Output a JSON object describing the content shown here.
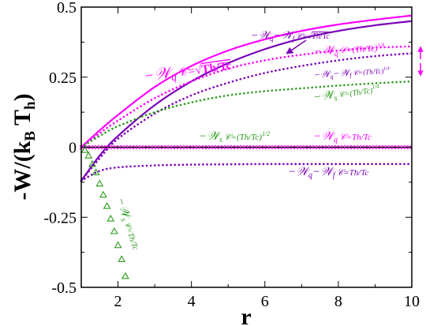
{
  "chart_data": {
    "type": "line",
    "xlabel": "r",
    "ylabel": "-W/(k_B T_h)",
    "xlim": [
      1,
      10
    ],
    "ylim": [
      -0.5,
      0.5
    ],
    "xticks": [
      "2",
      "4",
      "6",
      "8",
      "10"
    ],
    "yticks": [
      "-0.5",
      "-0.25",
      "0",
      "0.25",
      "0.5"
    ],
    "grid": false,
    "legend": "inline annotations",
    "colors": {
      "magenta": "#ff00ff",
      "purple": "#7a00b8",
      "green": "#2a9a1a",
      "black": "#000000"
    },
    "series": [
      {
        "color": "#ff00ff",
        "style": "solid",
        "x": [
          1,
          1.5,
          2,
          3,
          4,
          5,
          6,
          7,
          8,
          9,
          10
        ],
        "y": [
          0.0,
          0.06,
          0.115,
          0.215,
          0.29,
          0.345,
          0.385,
          0.415,
          0.438,
          0.455,
          0.47
        ]
      },
      {
        "color": "#7a00b8",
        "style": "solid",
        "x": [
          1,
          1.5,
          2,
          3,
          4,
          5,
          6,
          7,
          8,
          9,
          10
        ],
        "y": [
          -0.12,
          -0.03,
          0.04,
          0.15,
          0.235,
          0.3,
          0.35,
          0.388,
          0.415,
          0.435,
          0.45
        ]
      },
      {
        "color": "#ff00ff",
        "style": "dotted",
        "x": [
          1,
          1.5,
          2,
          3,
          4,
          5,
          6,
          7,
          8,
          9,
          10
        ],
        "y": [
          0.0,
          0.05,
          0.095,
          0.175,
          0.235,
          0.28,
          0.31,
          0.33,
          0.345,
          0.355,
          0.36
        ]
      },
      {
        "color": "#7a00b8",
        "style": "dotted",
        "x": [
          1,
          1.5,
          2,
          3,
          4,
          5,
          6,
          7,
          8,
          9,
          10
        ],
        "y": [
          -0.12,
          -0.04,
          0.03,
          0.12,
          0.185,
          0.23,
          0.265,
          0.29,
          0.31,
          0.325,
          0.335
        ]
      },
      {
        "color": "#2a9a1a",
        "style": "dotted",
        "x": [
          1,
          1.5,
          2,
          3,
          4,
          5,
          6,
          7,
          8,
          9,
          10
        ],
        "y": [
          0.0,
          0.04,
          0.075,
          0.125,
          0.16,
          0.185,
          0.2,
          0.21,
          0.22,
          0.228,
          0.235
        ]
      },
      {
        "color": "#7a00b8",
        "style": "dotted",
        "x": [
          1,
          1.5,
          2,
          3,
          4,
          5,
          6,
          7,
          8,
          9,
          10
        ],
        "y": [
          -0.12,
          -0.085,
          -0.072,
          -0.065,
          -0.062,
          -0.061,
          -0.06,
          -0.06,
          -0.06,
          -0.06,
          -0.06
        ]
      },
      {
        "color": "#2a9a1a",
        "style": "dotted",
        "x": [
          1,
          2,
          4,
          6,
          8,
          10
        ],
        "y": [
          0.0,
          0.0,
          0.0,
          0.0,
          0.0,
          0.0
        ]
      },
      {
        "color": "#ff00ff",
        "style": "markers-x",
        "x": [
          1,
          2,
          4,
          6,
          8,
          10
        ],
        "y": [
          0.0,
          0.0,
          0.0,
          0.0,
          0.0,
          0.0
        ]
      },
      {
        "color": "#2a9a1a",
        "style": "markers-triangle",
        "x": [
          1.1,
          1.2,
          1.3,
          1.4,
          1.5,
          1.6,
          1.7,
          1.8,
          1.9,
          2.0,
          2.1,
          2.2
        ],
        "y": [
          -0.01,
          -0.03,
          -0.06,
          -0.09,
          -0.13,
          -0.17,
          -0.21,
          -0.255,
          -0.3,
          -0.35,
          -0.4,
          -0.46
        ]
      }
    ],
    "annotations": [
      {
        "id": "a1",
        "text": "-W_q  C=√(Th/Tc)"
      },
      {
        "id": "a2",
        "text": "-W_q-W_f  C=√(Th/Tc)"
      },
      {
        "id": "a3",
        "text": "-W_q  C=(Th/Tc)^1/4"
      },
      {
        "id": "a4",
        "text": "-W_q-W_f  C=(Th/Tc)^1/4"
      },
      {
        "id": "a5",
        "text": "-W_s  C=(Th/Tc)^1/4"
      },
      {
        "id": "a6",
        "text": "-W_s  C=(Th/Tc)^1/2"
      },
      {
        "id": "a7",
        "text": "-W_q  C=Th/Tc"
      },
      {
        "id": "a8",
        "text": "-W_q-W_f  C=Th/Tc"
      },
      {
        "id": "a9",
        "text": "-W_s  C=Th/Tc"
      }
    ]
  }
}
